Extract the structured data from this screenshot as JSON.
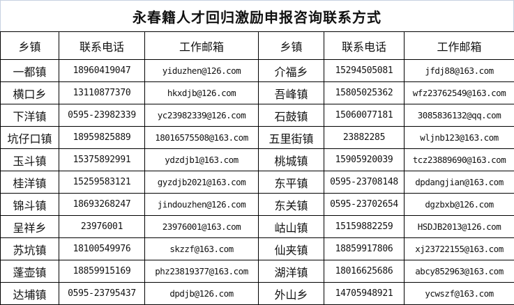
{
  "title": "永春籍人才回归激励申报咨询联系方式",
  "headers": [
    "乡镇",
    "联系电话",
    "工作邮箱",
    "乡镇",
    "联系电话",
    "工作邮箱"
  ],
  "rows": [
    {
      "left": {
        "town": "一都镇",
        "phone": "18960419047",
        "email": "yiduzhen@126.com"
      },
      "right": {
        "town": "介福乡",
        "phone": "15294505081",
        "email": "jfdj88@163.com"
      }
    },
    {
      "left": {
        "town": "横口乡",
        "phone": "13110877370",
        "email": "hkxdjb@126.com"
      },
      "right": {
        "town": "吾峰镇",
        "phone": "15805025362",
        "email": "wfz23762549@163.com"
      }
    },
    {
      "left": {
        "town": "下洋镇",
        "phone": "0595-23982339",
        "email": "yc23982339@126.com"
      },
      "right": {
        "town": "石鼓镇",
        "phone": "15060077181",
        "email": "3085836132@qq.com"
      }
    },
    {
      "left": {
        "town": "坑仔口镇",
        "phone": "18959825889",
        "email": "18016575508@163.com"
      },
      "right": {
        "town": "五里街镇",
        "phone": "23882285",
        "email": "wljnb123@163.com"
      }
    },
    {
      "left": {
        "town": "玉斗镇",
        "phone": "15375892991",
        "email": "ydzdjb1@163.com"
      },
      "right": {
        "town": "桃城镇",
        "phone": "15905920039",
        "email": "tcz23889690@163.com"
      }
    },
    {
      "left": {
        "town": "桂洋镇",
        "phone": "15259583121",
        "email": "gyzdjb2021@163.com"
      },
      "right": {
        "town": "东平镇",
        "phone": "0595-23708148",
        "email": "dpdangjian@163.com"
      }
    },
    {
      "left": {
        "town": "锦斗镇",
        "phone": "18693268247",
        "email": "jindouzhen@126.com"
      },
      "right": {
        "town": "东关镇",
        "phone": "0595-23702654",
        "email": "dgzbxb@126.com"
      }
    },
    {
      "left": {
        "town": "呈祥乡",
        "phone": "23976001",
        "email": "23976001@163.com"
      },
      "right": {
        "town": "岵山镇",
        "phone": "15159882259",
        "email": "HSDJB2013@126.com"
      }
    },
    {
      "left": {
        "town": "苏坑镇",
        "phone": "18100549976",
        "email": "skzzf@163.com"
      },
      "right": {
        "town": "仙夹镇",
        "phone": "18859917806",
        "email": "xj23722155@163.com"
      }
    },
    {
      "left": {
        "town": "蓬壶镇",
        "phone": "18859915169",
        "email": "phz23819377@163.com"
      },
      "right": {
        "town": "湖洋镇",
        "phone": "18016625686",
        "email": "abcy852963@163.com"
      }
    },
    {
      "left": {
        "town": "达埔镇",
        "phone": "0595-23795437",
        "email": "dpdjb@126.com"
      },
      "right": {
        "town": "外山乡",
        "phone": "14705948921",
        "email": "ycwszf@163.com"
      }
    }
  ]
}
